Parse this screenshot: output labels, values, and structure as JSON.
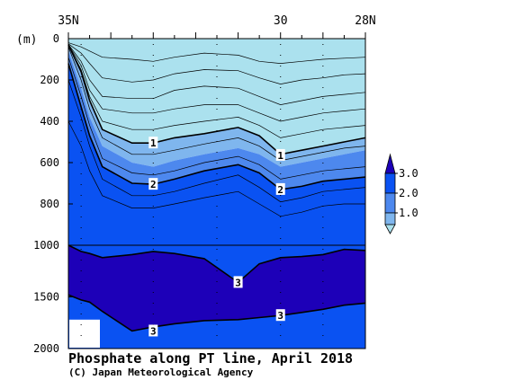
{
  "chart_data": {
    "type": "contour",
    "title": "Phosphate along PT line, April 2018",
    "credit": "(C) Japan Meteorological Agency",
    "x_ticks": [
      "35N",
      "30",
      "28N"
    ],
    "x_tick_values": [
      35,
      30,
      28
    ],
    "x_range": [
      35,
      28
    ],
    "y_unit": "(m)",
    "y_ticks_upper": [
      0,
      200,
      400,
      600,
      800,
      1000
    ],
    "y_ticks_lower": [
      1500,
      2000
    ],
    "y_range": [
      0,
      2000
    ],
    "y_break": 1000,
    "contour_labels": [
      {
        "text": "1",
        "lat": 33.0,
        "depth": 505
      },
      {
        "text": "1",
        "lat": 30.0,
        "depth": 565
      },
      {
        "text": "2",
        "lat": 33.0,
        "depth": 705
      },
      {
        "text": "2",
        "lat": 30.0,
        "depth": 730
      },
      {
        "text": "3",
        "lat": 31.0,
        "depth": 1360
      },
      {
        "text": "3",
        "lat": 30.0,
        "depth": 1680
      },
      {
        "text": "3",
        "lat": 33.0,
        "depth": 1830
      }
    ],
    "legend": {
      "labels": [
        "3.0",
        "2.0",
        "1.0"
      ],
      "colors": [
        "#1d00b8",
        "#0a52f2",
        "#4d88ee",
        "#7fb6ee",
        "#abe1ee"
      ]
    },
    "fill_colors": {
      "lt1": "#abe1ee",
      "1to1_5": "#7fb6ee",
      "1_5to2": "#4d88ee",
      "2to3": "#0a52f2",
      "gt3": "#1d00b8"
    }
  }
}
